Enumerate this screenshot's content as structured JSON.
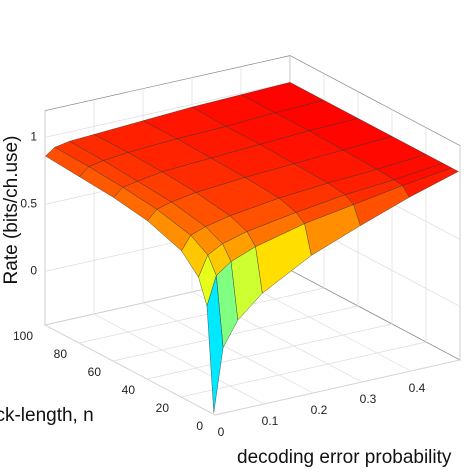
{
  "chart_data": {
    "type": "surface",
    "xlabel": "decoding error probability",
    "ylabel": "Block-length, n",
    "zlabel": "Rate (bits/ch.use)",
    "x": [
      0.001,
      0.02,
      0.05,
      0.1,
      0.2,
      0.3,
      0.4,
      0.5
    ],
    "y": [
      1,
      5,
      10,
      20,
      40,
      60,
      80,
      100
    ],
    "z": [
      [
        -0.39,
        0.08,
        0.26,
        0.42,
        0.62,
        0.76,
        0.89,
        1.0
      ],
      [
        0.38,
        0.59,
        0.67,
        0.74,
        0.83,
        0.89,
        0.95,
        1.0
      ],
      [
        0.56,
        0.71,
        0.77,
        0.82,
        0.88,
        0.93,
        0.96,
        1.0
      ],
      [
        0.69,
        0.79,
        0.83,
        0.87,
        0.92,
        0.95,
        0.97,
        1.0
      ],
      [
        0.78,
        0.85,
        0.88,
        0.91,
        0.94,
        0.96,
        0.98,
        1.0
      ],
      [
        0.82,
        0.88,
        0.9,
        0.93,
        0.95,
        0.97,
        0.99,
        1.0
      ],
      [
        0.84,
        0.9,
        0.92,
        0.94,
        0.96,
        0.97,
        0.99,
        1.0
      ],
      [
        0.86,
        0.91,
        0.93,
        0.94,
        0.96,
        0.98,
        0.99,
        1.0
      ]
    ],
    "xlim": [
      0,
      0.5
    ],
    "xticks": [
      0,
      0.1,
      0.2,
      0.3,
      0.4
    ],
    "ylim": [
      0,
      100
    ],
    "yticks": [
      0,
      20,
      40,
      60,
      80,
      100
    ],
    "zlim": [
      -0.4,
      1.2
    ],
    "zticks": [
      0,
      0.5,
      1
    ],
    "colormap": "jet",
    "grid": true
  }
}
